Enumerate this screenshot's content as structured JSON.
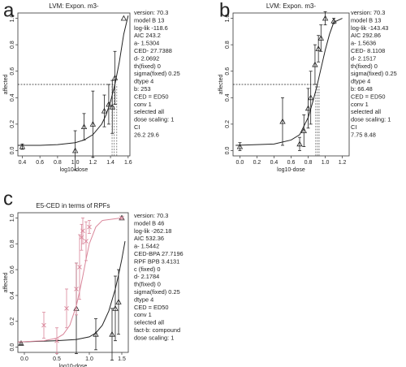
{
  "chart_data": [
    {
      "type": "line",
      "panel_label": "a",
      "title": "LVM: Expon. m3-",
      "x_label": "log10-dose",
      "y_label": "affected",
      "xlim": [
        0.35,
        1.62
      ],
      "xticks": [
        0.4,
        0.6,
        0.8,
        {
          "value": 1,
          "label": "1.0"
        },
        1.2,
        1.4,
        1.6
      ],
      "ylim": [
        -0.04,
        1.04
      ],
      "yticks": [
        {
          "value": 0,
          "label": "0.0"
        },
        0.2,
        0.4,
        0.6,
        0.8,
        {
          "value": 1,
          "label": "1.0"
        }
      ],
      "ref_y": 0.5,
      "ced_lines": [
        1.418,
        1.443,
        1.471
      ],
      "series": [
        {
          "style": "points",
          "marker": "triangle",
          "color": "#222",
          "x": [
            0.4,
            1.0,
            1.1,
            1.2,
            1.33,
            1.38,
            1.42,
            1.45,
            1.55
          ],
          "values": [
            0.03,
            0.0,
            0.18,
            0.2,
            0.3,
            0.35,
            0.33,
            0.55,
            1.0
          ],
          "errors": [
            0.02,
            0.15,
            0.1,
            0.25,
            0.12,
            0.15,
            0.2,
            0.2,
            0.0
          ]
        },
        {
          "style": "line",
          "color": "#222",
          "x": [
            0.35,
            0.6,
            0.8,
            1.0,
            1.1,
            1.2,
            1.3,
            1.35,
            1.4,
            1.45,
            1.5,
            1.55,
            1.6
          ],
          "values": [
            0.04,
            0.04,
            0.045,
            0.06,
            0.08,
            0.12,
            0.2,
            0.27,
            0.37,
            0.5,
            0.67,
            0.88,
            1.02
          ]
        }
      ],
      "stats": [
        "version: 70.3",
        "model B 13",
        "log-lik -118.6",
        "AIC 243.2",
        "a- 1.5304",
        "CED- 27.7388",
        "d- 2.0692",
        "th(fixed) 0",
        "sigma(fixed) 0.25",
        "dtype 4",
        "b: 253",
        "CED = ED50",
        "conv 1",
        "selected all",
        "dose scaling: 1",
        "CI",
        "26.2 29.6"
      ]
    },
    {
      "type": "line",
      "panel_label": "b",
      "title": "LVM: Expon. m3-",
      "x_label": "log10-dose",
      "y_label": "affected",
      "xlim": [
        -0.08,
        1.28
      ],
      "xticks": [
        {
          "value": 0,
          "label": "0.0"
        },
        0.2,
        0.4,
        0.6,
        0.8,
        {
          "value": 1,
          "label": "1.0"
        },
        1.2
      ],
      "ylim": [
        -0.04,
        1.04
      ],
      "yticks": [
        {
          "value": 0,
          "label": "0.0"
        },
        0.2,
        0.4,
        0.6,
        0.8,
        {
          "value": 1,
          "label": "1.0"
        }
      ],
      "ref_y": 0.5,
      "ced_lines": [
        0.889,
        0.909,
        0.928
      ],
      "series": [
        {
          "style": "points",
          "marker": "triangle",
          "color": "#222",
          "x": [
            0.0,
            0.5,
            0.7,
            0.75,
            0.8,
            0.83,
            0.88,
            0.92,
            0.95,
            1.0,
            1.1
          ],
          "values": [
            0.03,
            0.22,
            0.05,
            0.15,
            0.32,
            0.4,
            0.65,
            0.77,
            0.85,
            1.0,
            0.98
          ],
          "errors": [
            0.03,
            0.18,
            0.05,
            0.12,
            0.15,
            0.2,
            0.15,
            0.1,
            0.1,
            0.05,
            0.02
          ]
        },
        {
          "style": "line",
          "color": "#222",
          "x": [
            -0.05,
            0.2,
            0.4,
            0.6,
            0.7,
            0.8,
            0.85,
            0.9,
            0.95,
            1.0,
            1.05,
            1.1,
            1.2
          ],
          "values": [
            0.04,
            0.045,
            0.05,
            0.08,
            0.12,
            0.25,
            0.36,
            0.48,
            0.62,
            0.76,
            0.88,
            0.97,
            1.0
          ]
        }
      ],
      "stats": [
        "version: 70.3",
        "model B 13",
        "log-lik -143.43",
        "AIC 292.86",
        "a- 1.5636",
        "CED- 8.1108",
        "d- 2.1517",
        "th(fixed) 0",
        "sigma(fixed) 0.25",
        "dtype 4",
        "b: 66.48",
        "CED = ED50",
        "conv 1",
        "selected all",
        "dose scaling: 1",
        "CI",
        "7.75 8.48"
      ]
    },
    {
      "type": "line",
      "panel_label": "c",
      "title": "E5-CED in terms of RPFs",
      "x_label": "log10-dose",
      "y_label": "affected",
      "xlim": [
        -0.1,
        1.6
      ],
      "xticks": [
        {
          "value": 0,
          "label": "0.0"
        },
        0.5,
        {
          "value": 1,
          "label": "1.0"
        },
        1.5
      ],
      "ylim": [
        -0.04,
        1.04
      ],
      "yticks": [
        {
          "value": 0,
          "label": "0.0"
        },
        0.2,
        0.4,
        0.6,
        0.8,
        {
          "value": 1,
          "label": "1.0"
        }
      ],
      "series": [
        {
          "style": "points",
          "marker": "triangle",
          "color": "#222",
          "x": [
            -0.05,
            0.8,
            1.1,
            1.35,
            1.4,
            1.45,
            1.5
          ],
          "values": [
            0.03,
            0.3,
            0.1,
            0.1,
            0.3,
            0.35,
            1.0
          ],
          "errors": [
            0.01,
            0.35,
            0.12,
            0.2,
            0.25,
            0.25,
            0.0
          ]
        },
        {
          "style": "line",
          "color": "#222",
          "x": [
            -0.1,
            0.5,
            0.8,
            1.0,
            1.1,
            1.2,
            1.3,
            1.4,
            1.45,
            1.5,
            1.55
          ],
          "values": [
            0.04,
            0.05,
            0.06,
            0.08,
            0.11,
            0.17,
            0.28,
            0.45,
            0.56,
            0.68,
            0.82
          ]
        },
        {
          "style": "points",
          "marker": "cross",
          "color": "#d9869a",
          "x": [
            0.3,
            0.5,
            0.65,
            0.8,
            0.85,
            0.88,
            0.9,
            0.95,
            1.0,
            1.5
          ],
          "values": [
            0.17,
            0.05,
            0.3,
            0.45,
            0.62,
            0.85,
            0.9,
            0.82,
            0.93,
            1.0
          ],
          "errors": [
            0.1,
            0.1,
            0.15,
            0.2,
            0.25,
            0.1,
            0.1,
            0.15,
            0.05,
            0.0
          ]
        },
        {
          "style": "line",
          "color": "#d9869a",
          "x": [
            -0.1,
            0.3,
            0.5,
            0.6,
            0.7,
            0.8,
            0.85,
            0.9,
            0.95,
            1.0,
            1.1,
            1.2,
            1.5
          ],
          "values": [
            0.04,
            0.05,
            0.07,
            0.1,
            0.17,
            0.32,
            0.43,
            0.55,
            0.68,
            0.8,
            0.93,
            0.98,
            1.0
          ]
        }
      ],
      "stats": [
        "version: 70.3",
        "model B 46",
        "log-lik -262.18",
        "AIC 532.36",
        "a- 1.5442",
        "CED-BPA 27.7196",
        "RPF BPB 3.4131",
        "c (fixed) 0",
        "d- 2.1784",
        "th(fixed) 0",
        "sigma(fixed) 0.25",
        "dtype 4",
        "CED = ED50",
        "conv 1",
        "selected all",
        "fact-b: compound",
        "dose scaling: 1"
      ]
    }
  ]
}
